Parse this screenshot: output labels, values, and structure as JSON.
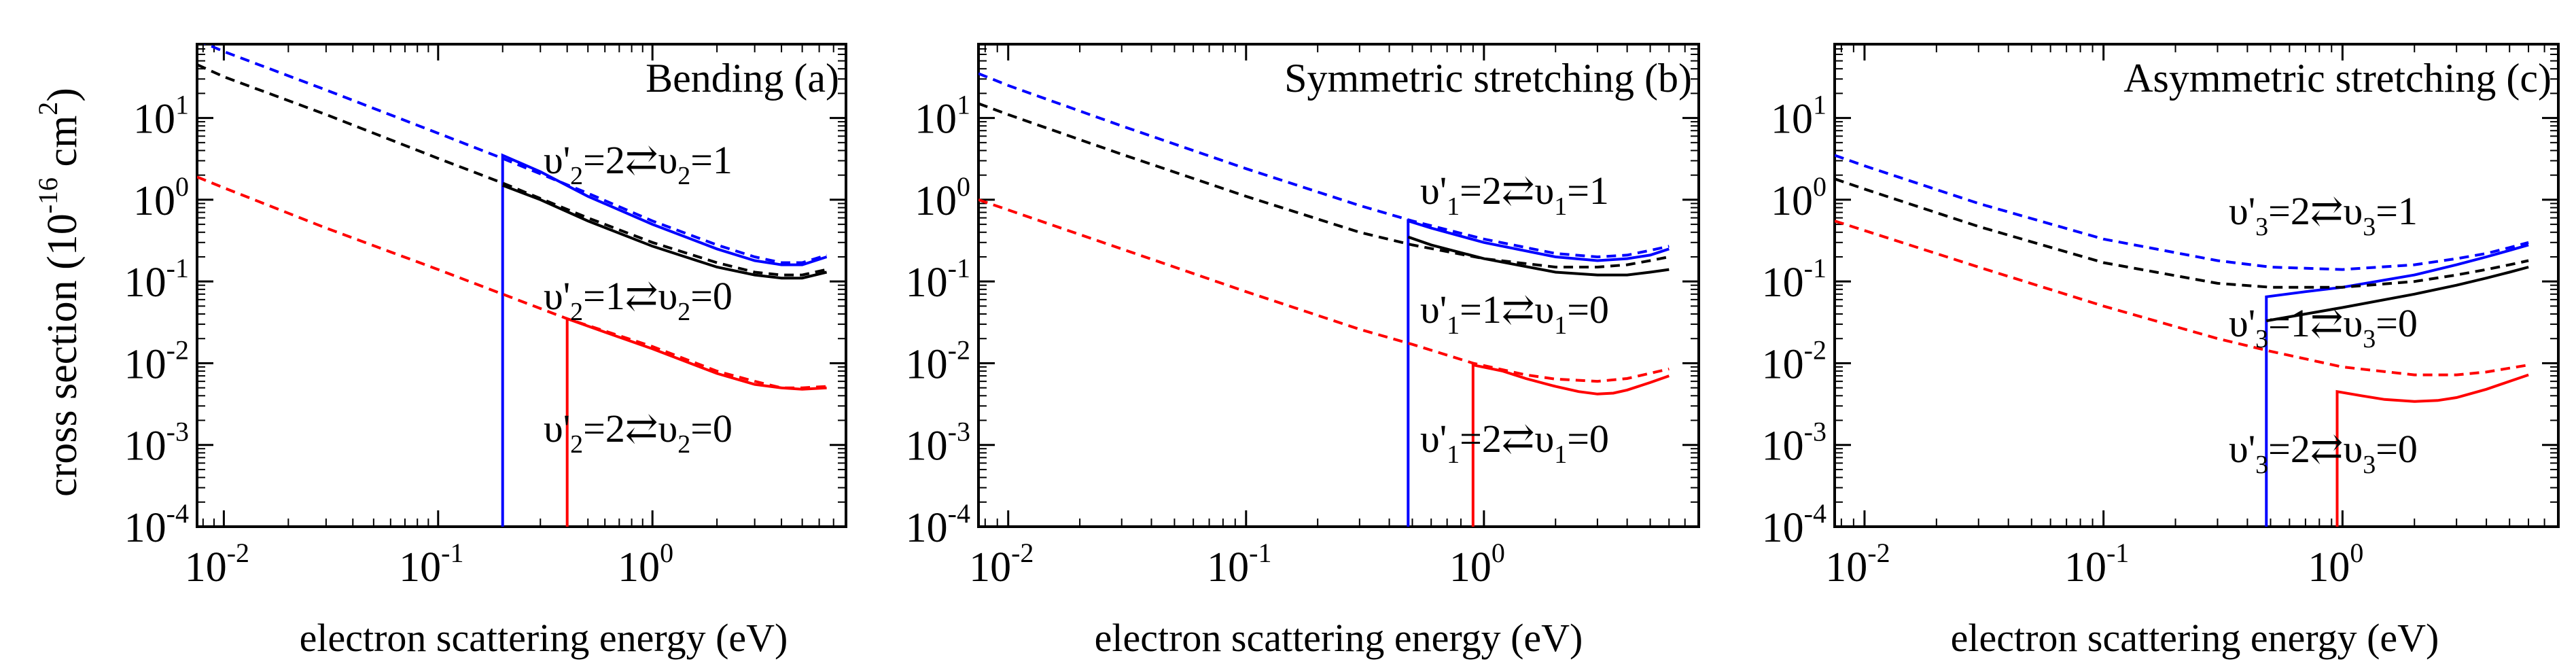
{
  "ylabel": "cross section (10",
  "ylabel_exp": "-16",
  "ylabel_unit": " cm",
  "ylabel_unit_exp": "2",
  "ylabel_close": ")",
  "colors": {
    "blue": "#0000ff",
    "black": "#000000",
    "red": "#ff0000"
  },
  "x_tick_labels": [
    {
      "base": "10",
      "exp": "-2",
      "value": 0.01
    },
    {
      "base": "10",
      "exp": "-1",
      "value": 0.1
    },
    {
      "base": "10",
      "exp": "0",
      "value": 1
    }
  ],
  "y_tick_labels": [
    {
      "base": "10",
      "exp": "-4",
      "value": 0.0001
    },
    {
      "base": "10",
      "exp": "-3",
      "value": 0.001
    },
    {
      "base": "10",
      "exp": "-2",
      "value": 0.01
    },
    {
      "base": "10",
      "exp": "-1",
      "value": 0.1
    },
    {
      "base": "10",
      "exp": "0",
      "value": 1
    },
    {
      "base": "10",
      "exp": "1",
      "value": 10
    }
  ],
  "chart_data": [
    {
      "type": "line",
      "title": "Bending (a)",
      "xlabel": "electron scattering energy (eV)",
      "ylabel": "cross section (10^-16 cm^2)",
      "xscale": "log",
      "yscale": "log",
      "xlim": [
        0.0075,
        8
      ],
      "ylim": [
        0.0001,
        80
      ],
      "series": [
        {
          "name": "υ'2=2↔υ2=1 dashed",
          "color": "blue",
          "dash": true,
          "x": [
            0.0075,
            0.01,
            0.03,
            0.1,
            0.2,
            0.5,
            1,
            2,
            3,
            4,
            5,
            6.5
          ],
          "y": [
            90,
            65,
            22,
            6.5,
            3.2,
            1.2,
            0.55,
            0.28,
            0.2,
            0.17,
            0.17,
            0.21
          ]
        },
        {
          "name": "υ'2=2↔υ2=1 solid",
          "color": "blue",
          "dash": false,
          "x": [
            0.2,
            0.2,
            0.3,
            0.5,
            1,
            2,
            3,
            4,
            5,
            6.5
          ],
          "y": [
            0.0001,
            3.5,
            2.2,
            1.1,
            0.5,
            0.25,
            0.18,
            0.16,
            0.16,
            0.2
          ]
        },
        {
          "name": "υ'2=1↔υ2=0 dashed",
          "color": "black",
          "dash": true,
          "x": [
            0.0075,
            0.01,
            0.03,
            0.1,
            0.2,
            0.5,
            1,
            2,
            3,
            4,
            5,
            6.5
          ],
          "y": [
            45,
            32,
            11,
            3.2,
            1.6,
            0.6,
            0.3,
            0.17,
            0.13,
            0.12,
            0.12,
            0.14
          ]
        },
        {
          "name": "υ'2=1↔υ2=0 solid",
          "color": "black",
          "dash": false,
          "x": [
            0.2,
            0.3,
            0.5,
            1,
            2,
            3,
            4,
            5,
            6.5
          ],
          "y": [
            1.5,
            1.0,
            0.55,
            0.27,
            0.15,
            0.12,
            0.11,
            0.11,
            0.13
          ]
        },
        {
          "name": "υ'2=2↔υ2=0 dashed",
          "color": "red",
          "dash": true,
          "x": [
            0.0075,
            0.01,
            0.03,
            0.1,
            0.2,
            0.4,
            1,
            2,
            3,
            4,
            5,
            6.5
          ],
          "y": [
            1.9,
            1.4,
            0.45,
            0.14,
            0.07,
            0.035,
            0.016,
            0.008,
            0.006,
            0.005,
            0.005,
            0.0052
          ]
        },
        {
          "name": "υ'2=2↔υ2=0 solid",
          "color": "red",
          "dash": false,
          "x": [
            0.4,
            0.4,
            0.6,
            1,
            2,
            3,
            4,
            5,
            6.5
          ],
          "y": [
            0.0001,
            0.035,
            0.024,
            0.015,
            0.0075,
            0.0055,
            0.005,
            0.0048,
            0.005
          ]
        }
      ],
      "annotations": [
        {
          "prime": "υ'",
          "sub": "2",
          "text": "=2",
          "arrow": "⇄",
          "lower": "υ",
          "sub2": "2",
          "text2": "=1",
          "color": "blue"
        },
        {
          "prime": "υ'",
          "sub": "2",
          "text": "=1",
          "arrow": "⇄",
          "lower": "υ",
          "sub2": "2",
          "text2": "=0",
          "color": "black"
        },
        {
          "prime": "υ'",
          "sub": "2",
          "text": "=2",
          "arrow": "⇄",
          "lower": "υ",
          "sub2": "2",
          "text2": "=0",
          "color": "red"
        }
      ]
    },
    {
      "type": "line",
      "title": "Symmetric stretching (b)",
      "xlabel": "electron scattering energy (eV)",
      "ylabel": "cross section (10^-16 cm^2)",
      "xscale": "log",
      "yscale": "log",
      "xlim": [
        0.0075,
        8
      ],
      "ylim": [
        0.0001,
        80
      ],
      "series": [
        {
          "name": "υ'1=2↔υ1=1 dashed",
          "color": "blue",
          "dash": true,
          "x": [
            0.0075,
            0.01,
            0.03,
            0.1,
            0.3,
            0.5,
            1,
            2,
            3,
            4,
            5,
            6
          ],
          "y": [
            35,
            25,
            8,
            2.4,
            0.85,
            0.55,
            0.33,
            0.22,
            0.2,
            0.21,
            0.24,
            0.27
          ]
        },
        {
          "name": "υ'1=2↔υ1=1 solid",
          "color": "blue",
          "dash": false,
          "x": [
            0.48,
            0.48,
            0.6,
            1,
            2,
            3,
            4,
            5,
            6
          ],
          "y": [
            0.0001,
            0.55,
            0.45,
            0.3,
            0.2,
            0.18,
            0.19,
            0.21,
            0.25
          ]
        },
        {
          "name": "υ'1=1↔υ1=0 dashed",
          "color": "black",
          "dash": true,
          "x": [
            0.0075,
            0.01,
            0.03,
            0.1,
            0.3,
            0.5,
            1,
            2,
            3,
            4,
            5,
            6
          ],
          "y": [
            15,
            11,
            3.6,
            1.1,
            0.4,
            0.28,
            0.19,
            0.15,
            0.15,
            0.16,
            0.18,
            0.2
          ]
        },
        {
          "name": "υ'1=1↔υ1=0 solid",
          "color": "black",
          "dash": false,
          "x": [
            0.48,
            0.6,
            1,
            2,
            3,
            4,
            5,
            6
          ],
          "y": [
            0.35,
            0.28,
            0.19,
            0.13,
            0.12,
            0.12,
            0.13,
            0.14
          ]
        },
        {
          "name": "υ'1=2↔υ1=0 dashed",
          "color": "red",
          "dash": true,
          "x": [
            0.0075,
            0.01,
            0.03,
            0.1,
            0.3,
            0.5,
            0.9,
            1.5,
            2,
            3,
            4,
            6
          ],
          "y": [
            1.0,
            0.75,
            0.25,
            0.075,
            0.026,
            0.017,
            0.01,
            0.0072,
            0.0064,
            0.006,
            0.0065,
            0.0085
          ]
        },
        {
          "name": "υ'1=2↔υ1=0 solid",
          "color": "red",
          "dash": false,
          "x": [
            0.9,
            0.9,
            1.2,
            1.5,
            2,
            2.5,
            3,
            3.5,
            4,
            5,
            6
          ],
          "y": [
            0.0001,
            0.0095,
            0.008,
            0.0065,
            0.0052,
            0.0045,
            0.0042,
            0.0043,
            0.0047,
            0.0058,
            0.007
          ]
        }
      ],
      "annotations": [
        {
          "prime": "υ'",
          "sub": "1",
          "text": "=2",
          "arrow": "⇄",
          "lower": "υ",
          "sub2": "1",
          "text2": "=1",
          "color": "blue"
        },
        {
          "prime": "υ'",
          "sub": "1",
          "text": "=1",
          "arrow": "⇄",
          "lower": "υ",
          "sub2": "1",
          "text2": "=0",
          "color": "black"
        },
        {
          "prime": "υ'",
          "sub": "1",
          "text": "=2",
          "arrow": "⇄",
          "lower": "υ",
          "sub2": "1",
          "text2": "=0",
          "color": "red"
        }
      ]
    },
    {
      "type": "line",
      "title": "Asymmetric stretching (c)",
      "xlabel": "electron scattering energy (eV)",
      "ylabel": "cross section (10^-16 cm^2)",
      "xscale": "log",
      "yscale": "log",
      "xlim": [
        0.0075,
        8
      ],
      "ylim": [
        0.0001,
        80
      ],
      "series": [
        {
          "name": "υ'3=2↔υ3=1 dashed",
          "color": "blue",
          "dash": true,
          "x": [
            0.0075,
            0.01,
            0.03,
            0.1,
            0.3,
            0.5,
            1,
            2,
            3,
            4,
            5,
            6
          ],
          "y": [
            3.5,
            2.6,
            0.9,
            0.33,
            0.18,
            0.15,
            0.14,
            0.16,
            0.19,
            0.22,
            0.26,
            0.3
          ]
        },
        {
          "name": "υ'3=2↔υ3=1 solid",
          "color": "blue",
          "dash": false,
          "x": [
            0.48,
            0.48,
            0.7,
            1,
            2,
            3,
            4,
            5,
            6
          ],
          "y": [
            0.0001,
            0.065,
            0.075,
            0.085,
            0.12,
            0.16,
            0.2,
            0.24,
            0.28
          ]
        },
        {
          "name": "υ'3=1↔υ3=0 dashed",
          "color": "black",
          "dash": true,
          "x": [
            0.0075,
            0.01,
            0.03,
            0.1,
            0.3,
            0.5,
            1,
            2,
            3,
            4,
            5,
            6
          ],
          "y": [
            1.8,
            1.35,
            0.47,
            0.17,
            0.095,
            0.085,
            0.085,
            0.1,
            0.12,
            0.14,
            0.16,
            0.18
          ]
        },
        {
          "name": "υ'3=1↔υ3=0 solid",
          "color": "black",
          "dash": false,
          "x": [
            0.48,
            0.7,
            1,
            2,
            3,
            4,
            5,
            6
          ],
          "y": [
            0.033,
            0.04,
            0.048,
            0.07,
            0.09,
            0.11,
            0.13,
            0.15
          ]
        },
        {
          "name": "υ'3=2↔υ3=0 dashed",
          "color": "red",
          "dash": true,
          "x": [
            0.0075,
            0.01,
            0.03,
            0.1,
            0.3,
            0.5,
            1,
            2,
            3,
            4,
            5,
            6
          ],
          "y": [
            0.55,
            0.42,
            0.15,
            0.05,
            0.02,
            0.014,
            0.009,
            0.0072,
            0.0072,
            0.0078,
            0.0087,
            0.0095
          ]
        },
        {
          "name": "υ'3=2↔υ3=0 solid",
          "color": "red",
          "dash": false,
          "x": [
            0.95,
            0.95,
            1.2,
            1.5,
            2,
            2.5,
            3,
            4,
            5,
            6
          ],
          "y": [
            0.0001,
            0.0045,
            0.004,
            0.0036,
            0.0034,
            0.0035,
            0.0038,
            0.0048,
            0.006,
            0.0072
          ]
        }
      ],
      "annotations": [
        {
          "prime": "υ'",
          "sub": "3",
          "text": "=2",
          "arrow": "⇄",
          "lower": "υ",
          "sub2": "3",
          "text2": "=1",
          "color": "blue"
        },
        {
          "prime": "υ'",
          "sub": "3",
          "text": "=1",
          "arrow": "⇄",
          "lower": "υ",
          "sub2": "3",
          "text2": "=0",
          "color": "black"
        },
        {
          "prime": "υ'",
          "sub": "3",
          "text": "=2",
          "arrow": "⇄",
          "lower": "υ",
          "sub2": "3",
          "text2": "=0",
          "color": "red"
        }
      ]
    }
  ]
}
